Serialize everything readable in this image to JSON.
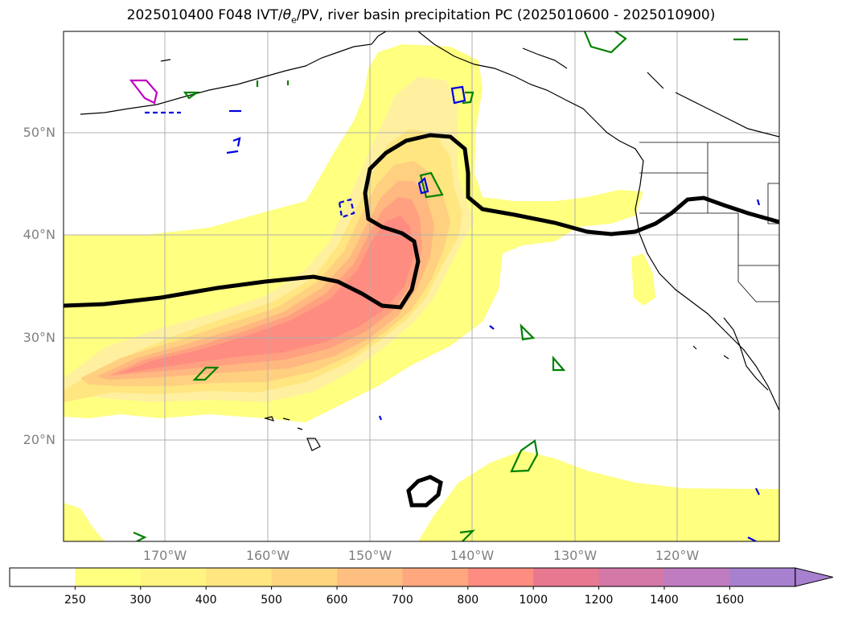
{
  "title_main": "2025010400 F048 IVT/",
  "title_theta": "θ",
  "title_sub": "e",
  "title_rest": "/PV, river basin precipitation PC (2025010600 - 2025010900)",
  "lat_labels": [
    "50°N",
    "40°N",
    "30°N",
    "20°N"
  ],
  "lon_labels": [
    "170°W",
    "160°W",
    "150°W",
    "140°W",
    "130°W",
    "120°W"
  ],
  "colorbar": {
    "levels": [
      "250",
      "300",
      "400",
      "500",
      "600",
      "700",
      "800",
      "1000",
      "1200",
      "1400",
      "1600"
    ],
    "colors": [
      "#ffffff",
      "#ffff80",
      "#fff580",
      "#ffe680",
      "#ffd580",
      "#ffbf80",
      "#ffa880",
      "#ff8c80",
      "#e87890",
      "#d478a8",
      "#c07cc0",
      "#a880d0"
    ]
  },
  "map_colors": {
    "pv_contour": "#000000",
    "coast": "#000000",
    "precip_green": "#008000",
    "precip_blue": "#0000e0",
    "precip_magenta": "#c000c0",
    "grid": "#b0b0b0"
  }
}
